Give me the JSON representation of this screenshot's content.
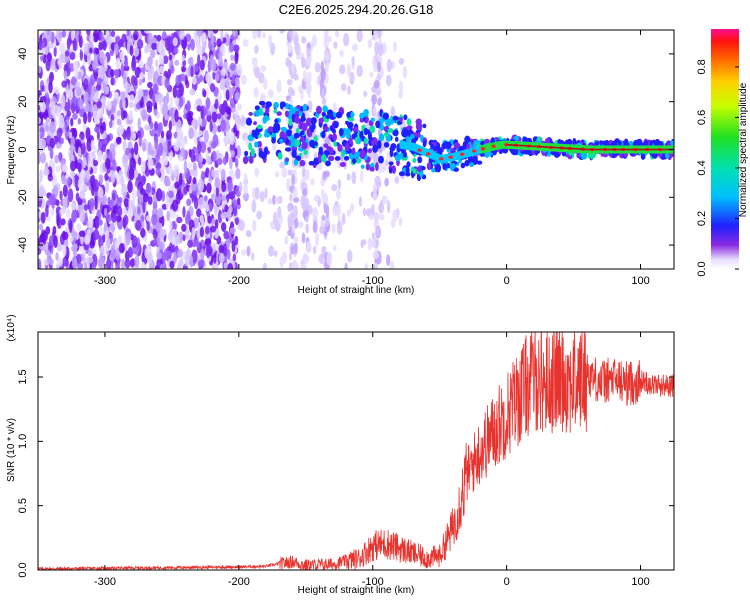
{
  "title": "C2E6.2025.294.20.26.G18",
  "chart_data": [
    {
      "type": "heatmap",
      "xlabel": "Height of straight line (km)",
      "ylabel": "Frequency (Hz)",
      "xlim": [
        -350,
        125
      ],
      "ylim": [
        -50,
        50
      ],
      "xticks": [
        "-300",
        "-200",
        "-100",
        "0",
        "100"
      ],
      "yticks": [
        "-40",
        "-20",
        "0",
        "20",
        "40"
      ],
      "colorbar": {
        "label": "Normalized spectral amplitude",
        "range": [
          0.0,
          0.95
        ],
        "ticks": [
          "0.0",
          "0.2",
          "0.4",
          "0.6",
          "0.8"
        ]
      },
      "ridge": {
        "description_points_x": [
          -195,
          -180,
          -150,
          -120,
          -90,
          -70,
          -50,
          -40,
          -20,
          -5,
          0,
          30,
          60,
          90,
          125
        ],
        "frequency": [
          7,
          8,
          6,
          5,
          3,
          1,
          -4,
          -3,
          0,
          2,
          2,
          1,
          0,
          0,
          0
        ]
      }
    },
    {
      "type": "line",
      "xlabel": "Height of straight line (km)",
      "ylabel": "SNR (10 * v/v)",
      "multiplier": "(x10⁴)",
      "xlim": [
        -350,
        125
      ],
      "ylim": [
        0,
        1.85
      ],
      "xticks": [
        "-300",
        "-200",
        "-100",
        "0",
        "100"
      ],
      "yticks": [
        "0.0",
        "0.5",
        "1.0",
        "1.5"
      ],
      "series": [
        {
          "color": "#e8322d",
          "x": [
            -350,
            -300,
            -250,
            -200,
            -180,
            -160,
            -150,
            -130,
            -110,
            -100,
            -90,
            -80,
            -70,
            -60,
            -50,
            -40,
            -30,
            -20,
            -10,
            0,
            10,
            20,
            30,
            40,
            50,
            60,
            70,
            80,
            90,
            100,
            110,
            125
          ],
          "y": [
            0.01,
            0.015,
            0.02,
            0.025,
            0.03,
            0.07,
            0.04,
            0.05,
            0.1,
            0.2,
            0.22,
            0.18,
            0.14,
            0.1,
            0.12,
            0.35,
            0.75,
            0.95,
            1.1,
            1.25,
            1.4,
            1.55,
            1.5,
            1.55,
            1.5,
            1.55,
            1.48,
            1.5,
            1.47,
            1.48,
            1.45,
            1.44
          ]
        }
      ]
    }
  ]
}
